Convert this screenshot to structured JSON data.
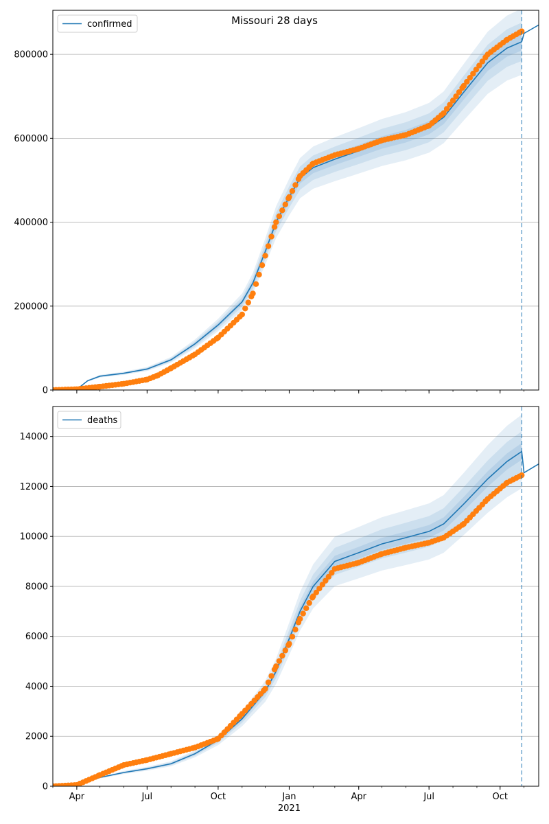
{
  "figure": {
    "title": "Missouri 28 days"
  },
  "chart_data": [
    {
      "type": "line",
      "title": "",
      "xlabel": "",
      "ylabel": "",
      "legend": {
        "label": "confirmed",
        "placement": "top-left"
      },
      "grid": "horizontal",
      "xlim": [
        "2020-03-01",
        "2021-11-20"
      ],
      "ylim": [
        0,
        905000
      ],
      "yticks": [
        0,
        200000,
        400000,
        600000,
        800000
      ],
      "xticks": [
        {
          "date": "2020-04-01",
          "label": "Apr"
        },
        {
          "date": "2020-07-01",
          "label": "Jul"
        },
        {
          "date": "2020-10-01",
          "label": "Oct"
        },
        {
          "date": "2021-01-01",
          "label": "Jan",
          "sublabel": "2021"
        },
        {
          "date": "2021-04-01",
          "label": "Apr"
        },
        {
          "date": "2021-07-01",
          "label": "Jul"
        },
        {
          "date": "2021-10-01",
          "label": "Oct"
        }
      ],
      "vline_date": "2021-10-29",
      "colors": {
        "model": "#1f77b4",
        "observed": "#ff7f0e",
        "band": "#1f77b4"
      },
      "model": {
        "name": "confirmed",
        "points": [
          [
            "2020-03-01",
            0
          ],
          [
            "2020-03-31",
            0
          ],
          [
            "2020-04-15",
            22000
          ],
          [
            "2020-05-01",
            33000
          ],
          [
            "2020-06-01",
            40000
          ],
          [
            "2020-07-01",
            50000
          ],
          [
            "2020-08-01",
            72000
          ],
          [
            "2020-09-01",
            110000
          ],
          [
            "2020-10-01",
            155000
          ],
          [
            "2020-11-01",
            210000
          ],
          [
            "2020-11-15",
            255000
          ],
          [
            "2020-12-01",
            330000
          ],
          [
            "2020-12-15",
            400000
          ],
          [
            "2021-01-01",
            460000
          ],
          [
            "2021-01-15",
            505000
          ],
          [
            "2021-02-01",
            530000
          ],
          [
            "2021-03-01",
            550000
          ],
          [
            "2021-04-01",
            570000
          ],
          [
            "2021-05-01",
            590000
          ],
          [
            "2021-06-01",
            605000
          ],
          [
            "2021-07-01",
            625000
          ],
          [
            "2021-07-20",
            650000
          ],
          [
            "2021-08-15",
            710000
          ],
          [
            "2021-09-15",
            780000
          ],
          [
            "2021-10-10",
            815000
          ],
          [
            "2021-10-29",
            830000
          ],
          [
            "2021-11-01",
            850000
          ],
          [
            "2021-11-20",
            870000
          ]
        ]
      },
      "band_widths": [
        0.025,
        0.055,
        0.095
      ],
      "observed": {
        "points": [
          [
            "2020-03-01",
            0
          ],
          [
            "2020-04-01",
            2000
          ],
          [
            "2020-05-01",
            8000
          ],
          [
            "2020-06-01",
            15000
          ],
          [
            "2020-07-01",
            25000
          ],
          [
            "2020-07-15",
            35000
          ],
          [
            "2020-08-01",
            52000
          ],
          [
            "2020-09-01",
            85000
          ],
          [
            "2020-10-01",
            125000
          ],
          [
            "2020-11-01",
            180000
          ],
          [
            "2020-11-15",
            230000
          ],
          [
            "2020-12-01",
            320000
          ],
          [
            "2020-12-15",
            400000
          ],
          [
            "2021-01-01",
            460000
          ],
          [
            "2021-01-15",
            510000
          ],
          [
            "2021-02-01",
            540000
          ],
          [
            "2021-03-01",
            560000
          ],
          [
            "2021-04-01",
            575000
          ],
          [
            "2021-05-01",
            595000
          ],
          [
            "2021-06-01",
            608000
          ],
          [
            "2021-07-01",
            630000
          ],
          [
            "2021-07-20",
            660000
          ],
          [
            "2021-08-15",
            725000
          ],
          [
            "2021-09-15",
            800000
          ],
          [
            "2021-10-10",
            835000
          ],
          [
            "2021-10-29",
            855000
          ]
        ]
      }
    },
    {
      "type": "line",
      "title": "",
      "xlabel": "",
      "ylabel": "",
      "legend": {
        "label": "deaths",
        "placement": "top-left"
      },
      "grid": "horizontal",
      "xlim": [
        "2020-03-01",
        "2021-11-20"
      ],
      "ylim": [
        0,
        15200
      ],
      "yticks": [
        0,
        2000,
        4000,
        6000,
        8000,
        10000,
        12000,
        14000
      ],
      "xticks": [
        {
          "date": "2020-04-01",
          "label": "Apr"
        },
        {
          "date": "2020-07-01",
          "label": "Jul"
        },
        {
          "date": "2020-10-01",
          "label": "Oct"
        },
        {
          "date": "2021-01-01",
          "label": "Jan",
          "sublabel": "2021"
        },
        {
          "date": "2021-04-01",
          "label": "Apr"
        },
        {
          "date": "2021-07-01",
          "label": "Jul"
        },
        {
          "date": "2021-10-01",
          "label": "Oct"
        }
      ],
      "vline_date": "2021-10-29",
      "colors": {
        "model": "#1f77b4",
        "observed": "#ff7f0e",
        "band": "#1f77b4"
      },
      "model": {
        "name": "deaths",
        "points": [
          [
            "2020-03-01",
            0
          ],
          [
            "2020-04-01",
            50
          ],
          [
            "2020-05-01",
            350
          ],
          [
            "2020-06-01",
            550
          ],
          [
            "2020-07-01",
            700
          ],
          [
            "2020-08-01",
            900
          ],
          [
            "2020-09-01",
            1300
          ],
          [
            "2020-10-01",
            1850
          ],
          [
            "2020-11-01",
            2700
          ],
          [
            "2020-12-01",
            3800
          ],
          [
            "2020-12-15",
            4600
          ],
          [
            "2021-01-01",
            5900
          ],
          [
            "2021-01-15",
            7000
          ],
          [
            "2021-02-01",
            8000
          ],
          [
            "2021-03-01",
            9000
          ],
          [
            "2021-04-01",
            9350
          ],
          [
            "2021-05-01",
            9700
          ],
          [
            "2021-06-01",
            9950
          ],
          [
            "2021-07-01",
            10200
          ],
          [
            "2021-07-20",
            10500
          ],
          [
            "2021-08-15",
            11300
          ],
          [
            "2021-09-15",
            12300
          ],
          [
            "2021-10-10",
            13000
          ],
          [
            "2021-10-29",
            13400
          ],
          [
            "2021-11-01",
            12550
          ],
          [
            "2021-11-20",
            12900
          ]
        ]
      },
      "band_widths": [
        0.025,
        0.06,
        0.11
      ],
      "observed": {
        "points": [
          [
            "2020-03-01",
            0
          ],
          [
            "2020-04-01",
            50
          ],
          [
            "2020-05-01",
            450
          ],
          [
            "2020-06-01",
            850
          ],
          [
            "2020-07-01",
            1050
          ],
          [
            "2020-08-01",
            1300
          ],
          [
            "2020-09-01",
            1550
          ],
          [
            "2020-10-01",
            1900
          ],
          [
            "2020-11-01",
            2900
          ],
          [
            "2020-12-01",
            3900
          ],
          [
            "2020-12-15",
            4800
          ],
          [
            "2021-01-01",
            5700
          ],
          [
            "2021-01-15",
            6700
          ],
          [
            "2021-02-01",
            7600
          ],
          [
            "2021-03-01",
            8700
          ],
          [
            "2021-04-01",
            8950
          ],
          [
            "2021-05-01",
            9300
          ],
          [
            "2021-06-01",
            9550
          ],
          [
            "2021-07-01",
            9750
          ],
          [
            "2021-07-20",
            9950
          ],
          [
            "2021-08-15",
            10500
          ],
          [
            "2021-09-15",
            11500
          ],
          [
            "2021-10-10",
            12150
          ],
          [
            "2021-10-29",
            12450
          ]
        ]
      }
    }
  ]
}
